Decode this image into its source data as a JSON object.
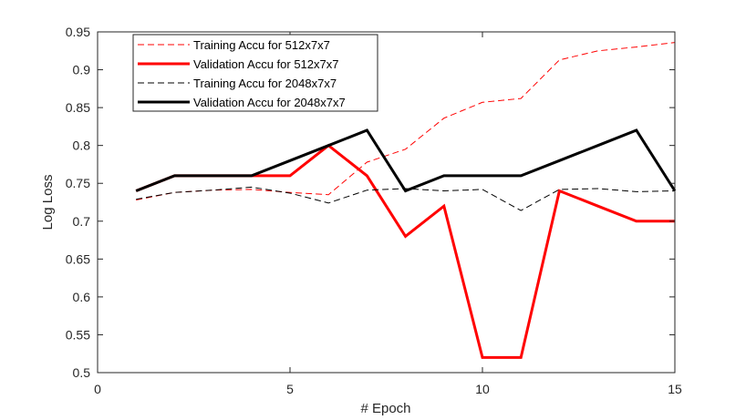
{
  "chart_data": {
    "type": "line",
    "title": "",
    "xlabel": "# Epoch",
    "ylabel": "Log Loss",
    "xlim": [
      0,
      15
    ],
    "ylim": [
      0.5,
      0.95
    ],
    "xticks": [
      0,
      5,
      10,
      15
    ],
    "xtick_labels": [
      "0",
      "5",
      "10",
      "15"
    ],
    "yticks": [
      0.5,
      0.55,
      0.6,
      0.65,
      0.7,
      0.75,
      0.8,
      0.85,
      0.9,
      0.95
    ],
    "ytick_labels": [
      "0.5",
      "0.55",
      "0.6",
      "0.65",
      "0.7",
      "0.75",
      "0.8",
      "0.85",
      "0.9",
      "0.95"
    ],
    "grid": false,
    "legend_position": "top-left",
    "x": [
      1,
      2,
      3,
      4,
      5,
      6,
      7,
      8,
      9,
      10,
      11,
      12,
      13,
      14,
      15
    ],
    "series": [
      {
        "name": "Training Accu for 512x7x7",
        "color": "#ff0000",
        "style": "dashed",
        "weight": "thin",
        "values": [
          0.728,
          0.738,
          0.741,
          0.742,
          0.738,
          0.735,
          0.778,
          0.795,
          0.836,
          0.857,
          0.862,
          0.913,
          0.925,
          0.93,
          0.936
        ]
      },
      {
        "name": "Validation Accu for 512x7x7",
        "color": "#ff0000",
        "style": "solid",
        "weight": "thick",
        "values": [
          0.74,
          0.76,
          0.76,
          0.76,
          0.76,
          0.8,
          0.76,
          0.68,
          0.72,
          0.52,
          0.52,
          0.74,
          0.72,
          0.7,
          0.7
        ]
      },
      {
        "name": "Training Accu for 2048x7x7",
        "color": "#000000",
        "style": "dashed",
        "weight": "thin",
        "values": [
          0.729,
          0.738,
          0.741,
          0.745,
          0.737,
          0.724,
          0.741,
          0.743,
          0.74,
          0.742,
          0.714,
          0.742,
          0.743,
          0.739,
          0.74
        ]
      },
      {
        "name": "Validation Accu for 2048x7x7",
        "color": "#000000",
        "style": "solid",
        "weight": "thick",
        "values": [
          0.74,
          0.76,
          0.76,
          0.76,
          0.78,
          0.8,
          0.82,
          0.74,
          0.76,
          0.76,
          0.76,
          0.78,
          0.8,
          0.82,
          0.74
        ]
      }
    ]
  }
}
